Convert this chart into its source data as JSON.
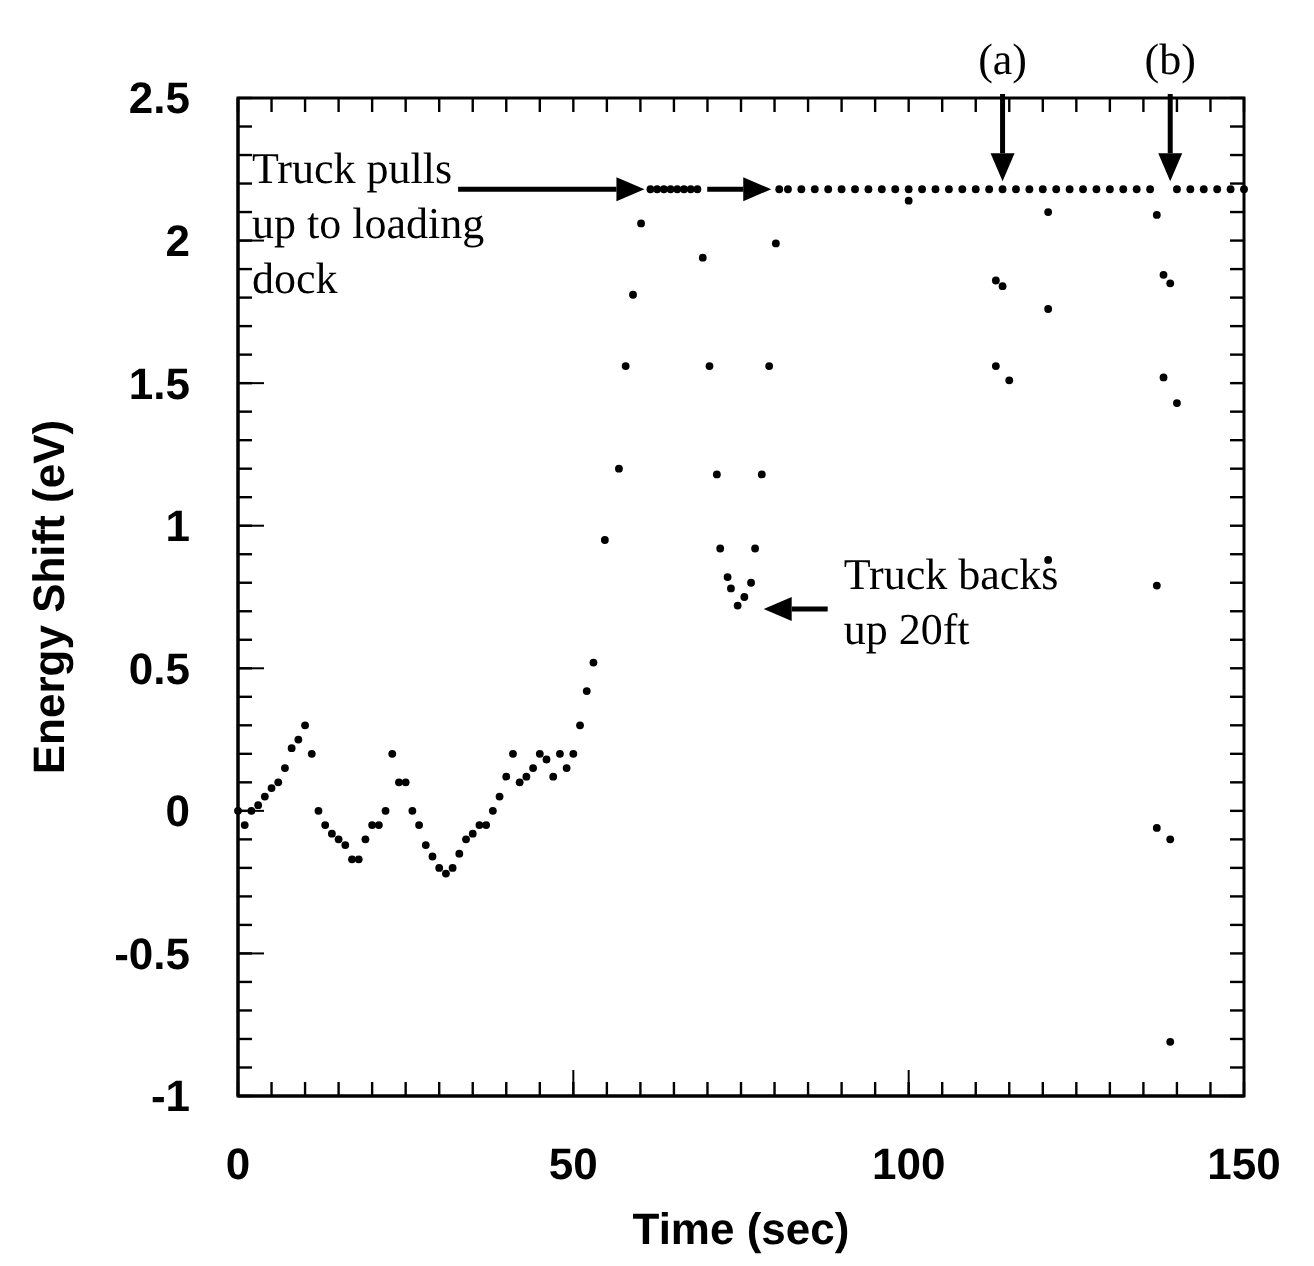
{
  "chart_data": {
    "type": "scatter",
    "xlabel": "Time (sec)",
    "ylabel": "Energy Shift (eV)",
    "xlim": [
      0,
      150
    ],
    "xticks": [
      0,
      50,
      100,
      150
    ],
    "ylim": [
      -1,
      2.5
    ],
    "yticks": [
      -1,
      -0.5,
      0,
      0.5,
      1,
      1.5,
      2,
      2.5
    ],
    "marker": "circle",
    "grid": false,
    "series": [
      {
        "color": "#000000",
        "x": [
          0,
          1,
          2,
          3,
          4,
          5,
          6,
          7,
          8,
          9,
          10,
          11,
          12,
          13,
          14,
          15,
          16,
          17,
          18,
          19,
          20,
          21,
          22,
          23,
          24,
          25,
          26,
          27,
          28,
          29,
          30,
          31,
          32,
          33,
          34,
          35,
          36,
          37,
          38,
          39,
          40,
          41,
          42,
          43,
          44,
          45,
          46,
          47,
          48,
          49,
          50,
          51,
          52,
          53,
          54.7,
          56.8,
          57.8,
          58.9,
          60.1,
          61.5,
          62.5,
          63.5,
          64.5,
          65.5,
          66.5,
          67.5,
          68.5,
          69.3,
          70.3,
          71.4,
          71.9,
          73,
          73.5,
          74.5,
          75.5,
          76.5,
          77.1,
          78.1,
          79.2,
          80.2,
          80.7,
          82,
          84,
          86,
          88,
          90,
          92,
          94,
          96,
          98,
          100,
          100,
          102,
          104,
          106,
          108,
          110,
          112,
          113,
          113,
          114,
          114,
          115,
          116,
          118,
          120,
          120.8,
          120.8,
          120.8,
          122,
          124,
          126,
          128,
          130,
          132,
          134,
          136,
          137,
          137,
          137,
          138,
          138,
          139,
          139,
          139,
          140,
          140,
          142,
          144,
          146,
          148,
          150
        ],
        "values": [
          0,
          -0.05,
          0,
          0.02,
          0.05,
          0.08,
          0.1,
          0.15,
          0.22,
          0.25,
          0.3,
          0.2,
          0,
          -0.05,
          -0.08,
          -0.1,
          -0.12,
          -0.17,
          -0.17,
          -0.1,
          -0.05,
          -0.05,
          0,
          0.2,
          0.1,
          0.1,
          0,
          -0.05,
          -0.12,
          -0.16,
          -0.2,
          -0.22,
          -0.2,
          -0.15,
          -0.1,
          -0.08,
          -0.05,
          -0.05,
          0,
          0.05,
          0.12,
          0.2,
          0.1,
          0.12,
          0.15,
          0.2,
          0.18,
          0.12,
          0.2,
          0.15,
          0.2,
          0.3,
          0.42,
          0.52,
          0.95,
          1.2,
          1.56,
          1.81,
          2.06,
          2.18,
          2.18,
          2.18,
          2.18,
          2.18,
          2.18,
          2.18,
          2.18,
          1.94,
          1.56,
          1.18,
          0.92,
          0.82,
          0.78,
          0.72,
          0.75,
          0.8,
          0.92,
          1.18,
          1.56,
          1.99,
          2.18,
          2.18,
          2.18,
          2.18,
          2.18,
          2.18,
          2.18,
          2.18,
          2.18,
          2.18,
          2.18,
          2.14,
          2.18,
          2.18,
          2.18,
          2.18,
          2.18,
          2.18,
          1.86,
          1.56,
          2.18,
          1.84,
          1.51,
          2.18,
          2.18,
          2.18,
          1.76,
          0.88,
          2.1,
          2.18,
          2.18,
          2.18,
          2.18,
          2.18,
          2.18,
          2.18,
          2.18,
          0.79,
          -0.06,
          2.09,
          1.88,
          1.52,
          1.85,
          -0.1,
          -0.81,
          2.18,
          1.43,
          2.18,
          2.18,
          2.18,
          2.18,
          2.18
        ]
      }
    ],
    "annotations": [
      "Truck pulls up to loading dock",
      {
        "text": "Truck backs up 20ft",
        "x": 76,
        "y": 0.75
      },
      {
        "text": "(a)",
        "x": 114,
        "y": 2.18
      },
      {
        "text": "(b)",
        "x": 139,
        "y": 2.18
      }
    ]
  }
}
